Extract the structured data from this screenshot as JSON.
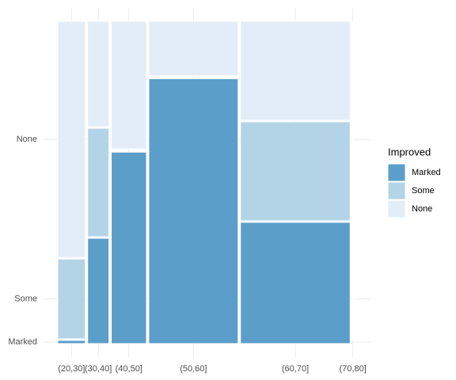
{
  "chart_data": {
    "type": "mosaic",
    "legend_title": "Improved",
    "categories": [
      "(20,30]",
      "(30,40]",
      "(40,50]",
      "(50,60]",
      "(60,70]",
      "(70,80]"
    ],
    "widths": [
      0.097,
      0.075,
      0.124,
      0.315,
      0.387,
      0.002
    ],
    "series": [
      {
        "name": "Marked",
        "color": "#5b9ec9",
        "values": [
          0.01,
          0.33,
          0.6,
          0.83,
          0.38,
          0
        ]
      },
      {
        "name": "Some",
        "color": "#b3d4e7",
        "values": [
          0.25,
          0.34,
          0,
          0,
          0.31,
          0
        ]
      },
      {
        "name": "None",
        "color": "#e2edf7",
        "values": [
          0.74,
          0.33,
          0.4,
          0.17,
          0.31,
          1
        ]
      }
    ],
    "grid": true,
    "legend": "right"
  }
}
